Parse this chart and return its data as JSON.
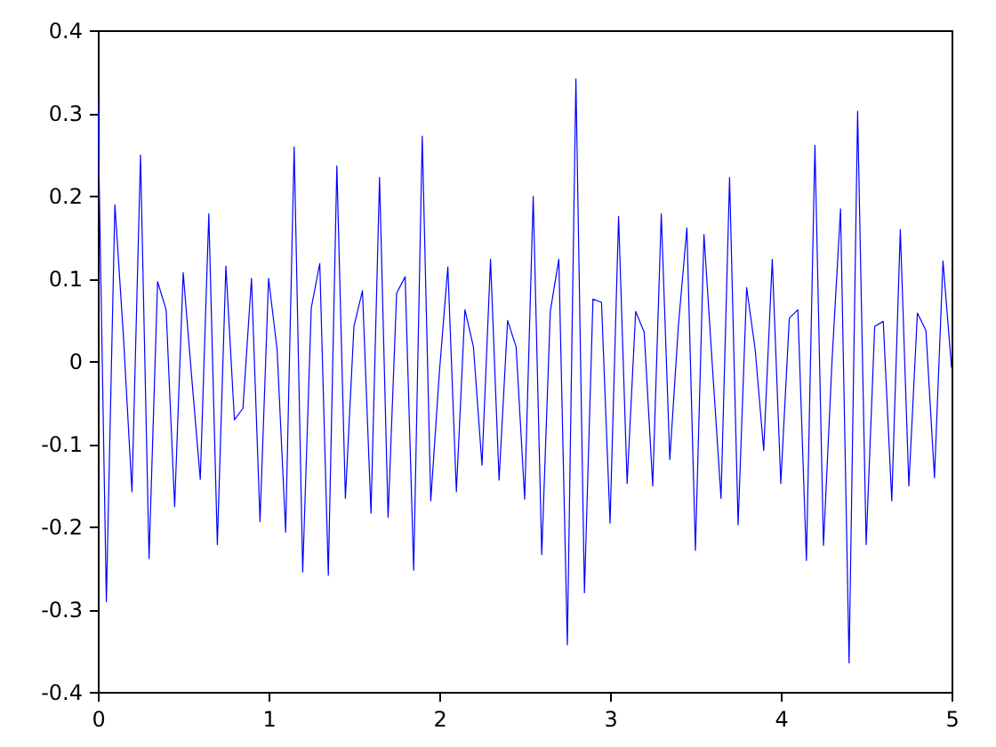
{
  "chart_data": {
    "type": "line",
    "x": [
      0,
      0.05,
      0.1,
      0.15,
      0.2,
      0.25,
      0.3,
      0.35,
      0.4,
      0.45,
      0.5,
      0.55,
      0.6,
      0.65,
      0.7,
      0.75,
      0.8,
      0.85,
      0.9,
      0.95,
      1,
      1.05,
      1.1,
      1.15,
      1.2,
      1.25,
      1.3,
      1.35,
      1.4,
      1.45,
      1.5,
      1.55,
      1.6,
      1.65,
      1.7,
      1.75,
      1.8,
      1.85,
      1.9,
      1.95,
      2,
      2.05,
      2.1,
      2.15,
      2.2,
      2.25,
      2.3,
      2.35,
      2.4,
      2.45,
      2.5,
      2.55,
      2.6,
      2.65,
      2.7,
      2.75,
      2.8,
      2.85,
      2.9,
      2.95,
      3,
      3.05,
      3.1,
      3.15,
      3.2,
      3.25,
      3.3,
      3.35,
      3.4,
      3.45,
      3.5,
      3.55,
      3.6,
      3.65,
      3.7,
      3.75,
      3.8,
      3.85,
      3.9,
      3.95,
      4,
      4.05,
      4.1,
      4.15,
      4.2,
      4.25,
      4.3,
      4.35,
      4.4,
      4.45,
      4.5,
      4.55,
      4.6,
      4.65,
      4.7,
      4.75,
      4.8,
      4.85,
      4.9,
      4.95,
      5
    ],
    "series": [
      {
        "color": "#0000ff",
        "values": [
          0.315,
          -0.291,
          0.189,
          0.03,
          -0.158,
          0.249,
          -0.239,
          0.096,
          0.062,
          -0.176,
          0.107,
          -0.02,
          -0.143,
          0.178,
          -0.222,
          0.115,
          -0.071,
          -0.057,
          0.1,
          -0.194,
          0.1,
          0.014,
          -0.207,
          0.259,
          -0.255,
          0.064,
          0.118,
          -0.259,
          0.236,
          -0.166,
          0.042,
          0.085,
          -0.184,
          0.222,
          -0.189,
          0.082,
          0.102,
          -0.253,
          0.272,
          -0.169,
          -0.015,
          0.114,
          -0.158,
          0.062,
          0.017,
          -0.126,
          0.123,
          -0.144,
          0.049,
          0.017,
          -0.167,
          0.199,
          -0.234,
          0.06,
          0.123,
          -0.343,
          0.341,
          -0.28,
          0.075,
          0.071,
          -0.196,
          0.175,
          -0.148,
          0.06,
          0.035,
          -0.151,
          0.178,
          -0.119,
          0.042,
          0.161,
          -0.229,
          0.153,
          -0.008,
          -0.166,
          0.222,
          -0.198,
          0.089,
          0.014,
          -0.108,
          0.123,
          -0.148,
          0.052,
          0.062,
          -0.241,
          0.261,
          -0.223,
          0.0,
          0.184,
          -0.365,
          0.302,
          -0.222,
          0.042,
          0.048,
          -0.169,
          0.159,
          -0.151,
          0.058,
          0.037,
          -0.141,
          0.121,
          -0.008
        ]
      }
    ],
    "xlim": [
      0,
      5
    ],
    "ylim": [
      -0.4,
      0.4
    ],
    "xticks": [
      0,
      1,
      2,
      3,
      4,
      5
    ],
    "yticks": [
      -0.4,
      -0.3,
      -0.2,
      -0.1,
      0,
      0.1,
      0.2,
      0.3,
      0.4
    ],
    "line_style": "solid"
  }
}
